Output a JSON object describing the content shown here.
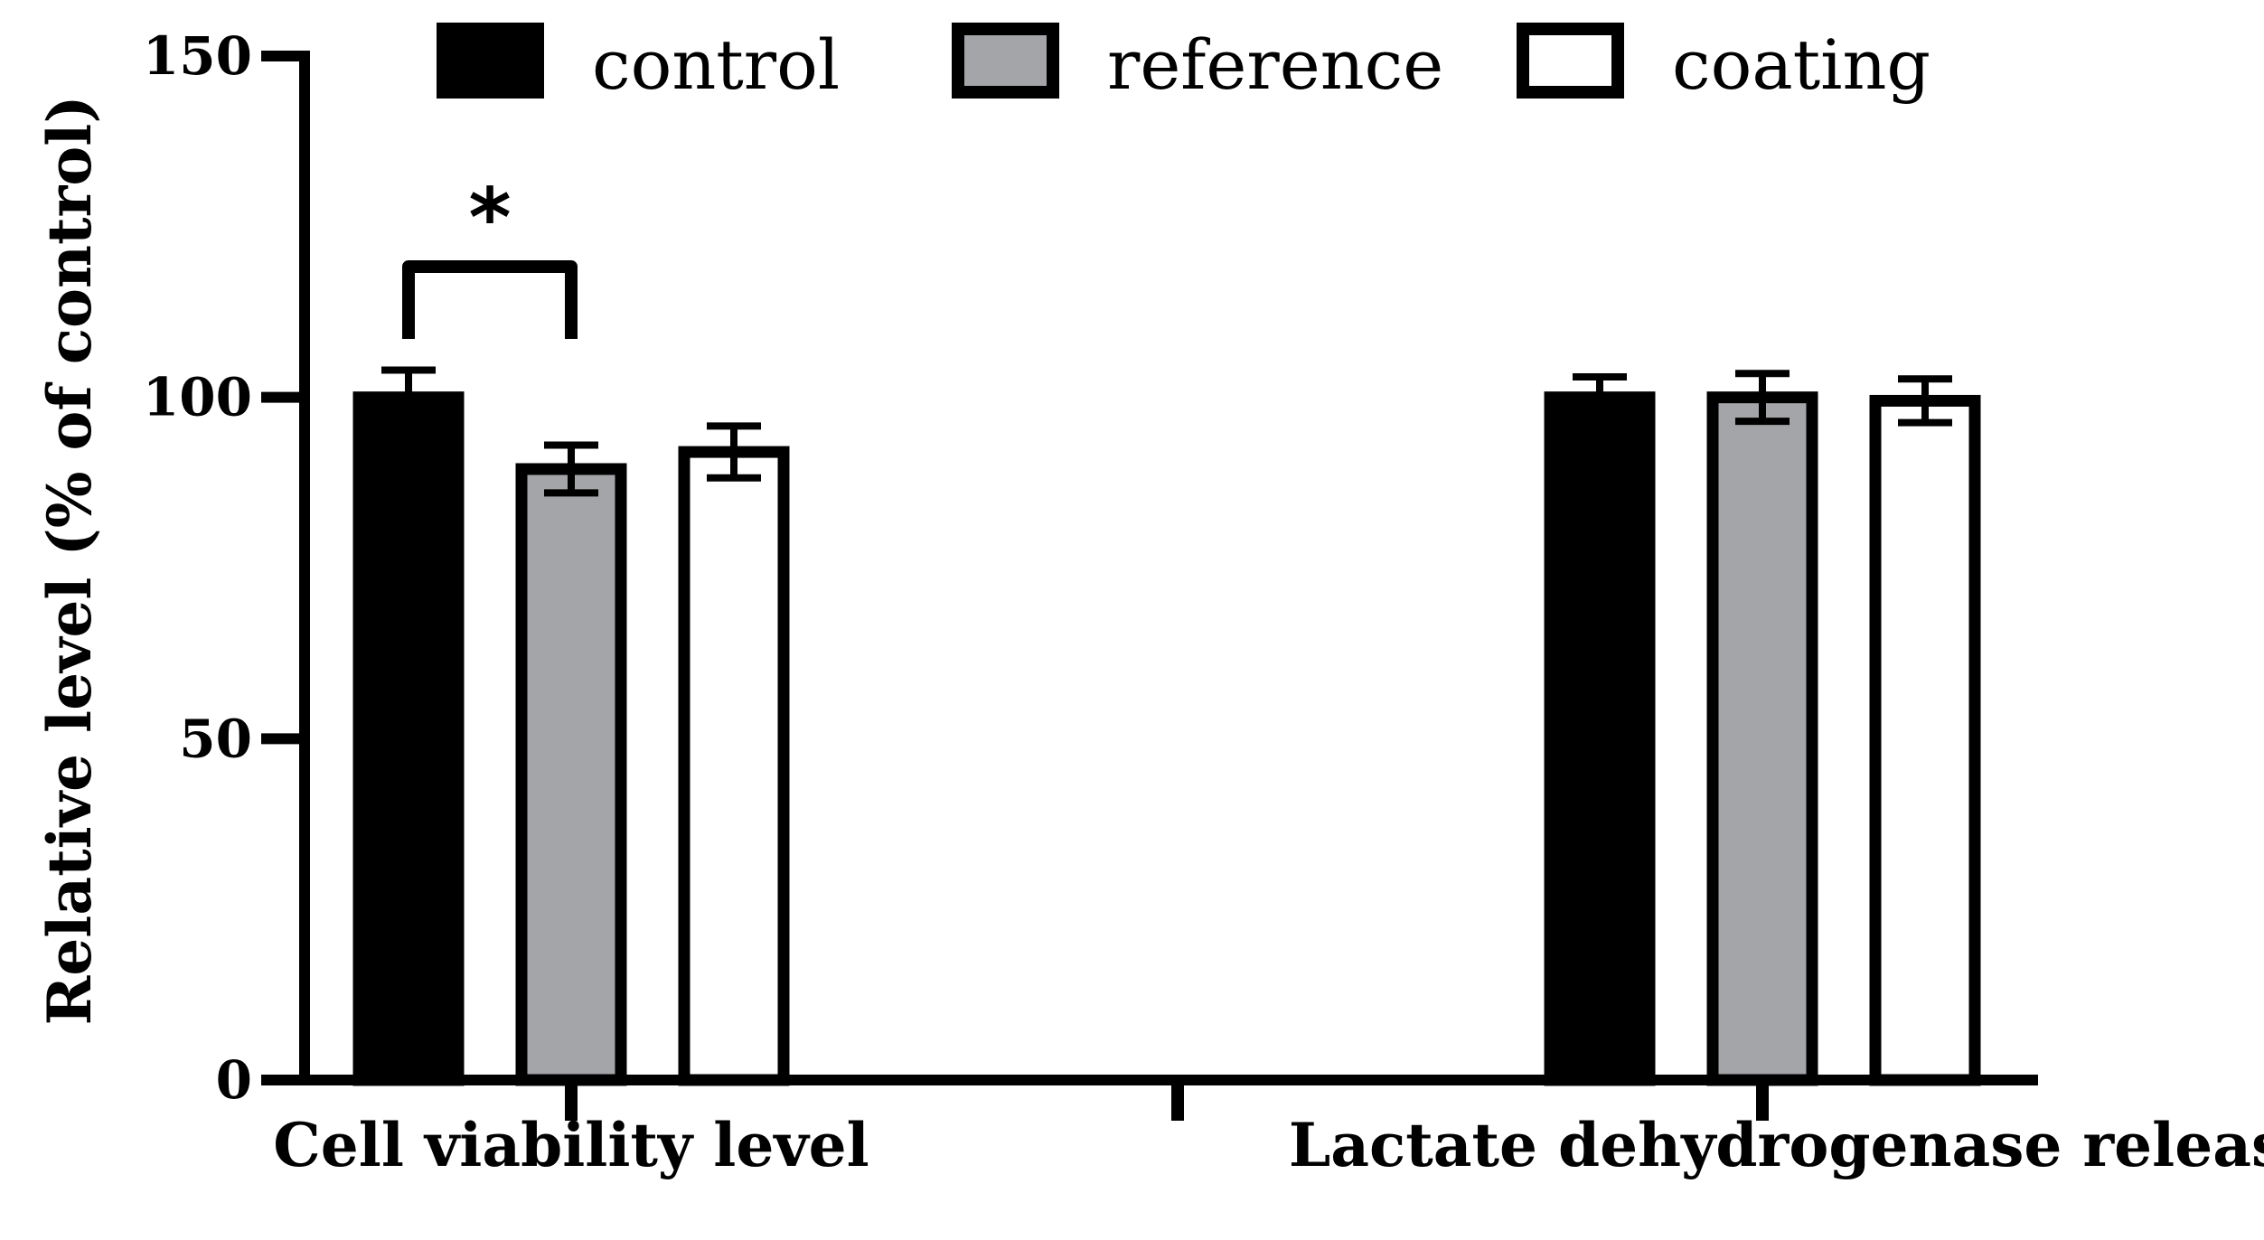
{
  "chart_data": {
    "type": "bar",
    "title": "",
    "xlabel": "",
    "ylabel": "Relative level (% of control)",
    "ylim": [
      0,
      150
    ],
    "yticks": [
      0,
      50,
      100,
      150
    ],
    "grid": false,
    "legend_position": "top",
    "categories": [
      "Cell viability level",
      "Lactate dehydrogenase release"
    ],
    "series": [
      {
        "name": "control",
        "color": "#000000",
        "values": [
          100,
          100
        ],
        "errors": [
          4,
          3
        ]
      },
      {
        "name": "reference",
        "color": "#a4a5a8",
        "values": [
          89.5,
          100
        ],
        "errors": [
          3.5,
          3.5
        ]
      },
      {
        "name": "coating",
        "color": "#ffffff",
        "values": [
          92,
          99.5
        ],
        "errors": [
          3.8,
          3.2
        ]
      }
    ],
    "annotations": [
      {
        "text": "*",
        "category": "Cell viability level",
        "between": [
          "control",
          "reference"
        ]
      }
    ]
  }
}
